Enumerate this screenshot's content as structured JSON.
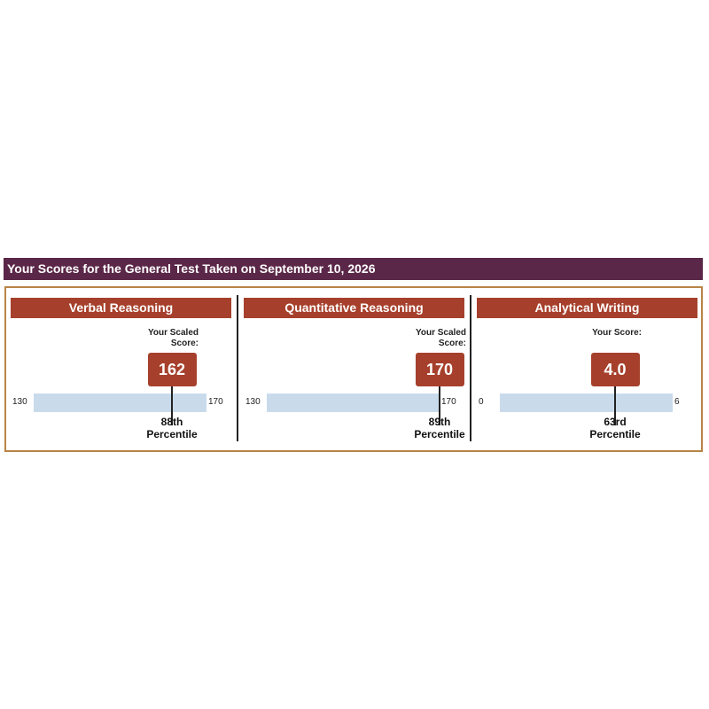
{
  "header": {
    "title": "Your Scores for the General Test Taken on September 10, 2026"
  },
  "sections": [
    {
      "title": "Verbal Reasoning",
      "score_label": "Your Scaled Score:",
      "score": 162,
      "min": 130,
      "max": 170,
      "percentile": "88th",
      "percentile_label": "Percentile"
    },
    {
      "title": "Quantitative Reasoning",
      "score_label": "Your Scaled Score:",
      "score": 170,
      "min": 130,
      "max": 170,
      "percentile": "89th",
      "percentile_label": "Percentile"
    },
    {
      "title": "Analytical Writing",
      "score_label": "Your Score:",
      "score": {
        "value": 4,
        "label": "4.0"
      },
      "min": 0,
      "max": 6,
      "percentile": "63rd",
      "percentile_label": "Percentile"
    }
  ]
}
